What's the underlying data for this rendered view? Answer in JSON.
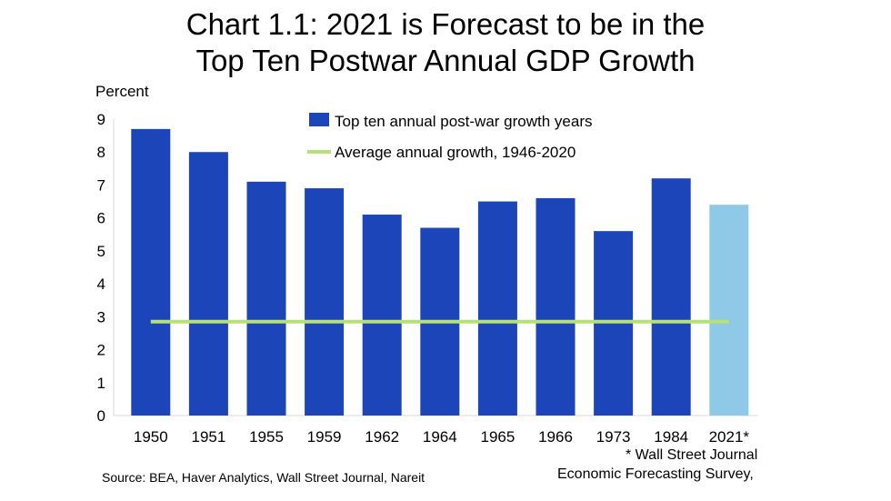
{
  "chart_data": {
    "type": "bar",
    "title": "Chart 1.1: 2021 is Forecast to be in the Top Ten Postwar Annual GDP Growth",
    "title_lines": [
      "Chart 1.1: 2021 is Forecast to be in the",
      "Top Ten Postwar Annual GDP Growth"
    ],
    "ylabel": "Percent",
    "xlabel": "",
    "ylim": [
      0,
      9
    ],
    "yticks": [
      0,
      1,
      2,
      3,
      4,
      5,
      6,
      7,
      8,
      9
    ],
    "grid": false,
    "legend_placement": "top-center",
    "categories": [
      "1950",
      "1951",
      "1955",
      "1959",
      "1962",
      "1964",
      "1965",
      "1966",
      "1973",
      "1984",
      "2021*"
    ],
    "series": [
      {
        "name": "Top ten annual post-war growth years",
        "type": "bar",
        "color": "#1b45b8",
        "forecast_color": "#8ecae8",
        "values": [
          8.7,
          8.0,
          7.1,
          6.9,
          6.1,
          5.7,
          6.5,
          6.6,
          5.6,
          7.2,
          6.4
        ]
      },
      {
        "name": "Average annual growth, 1946-2020",
        "type": "line",
        "color": "#b5e07a",
        "value": 2.85
      }
    ],
    "footnote_lines": [
      "* Wall Street Journal",
      "Economic Forecasting Survey,"
    ],
    "source": "Source: BEA, Haver Analytics, Wall Street Journal, Nareit"
  }
}
